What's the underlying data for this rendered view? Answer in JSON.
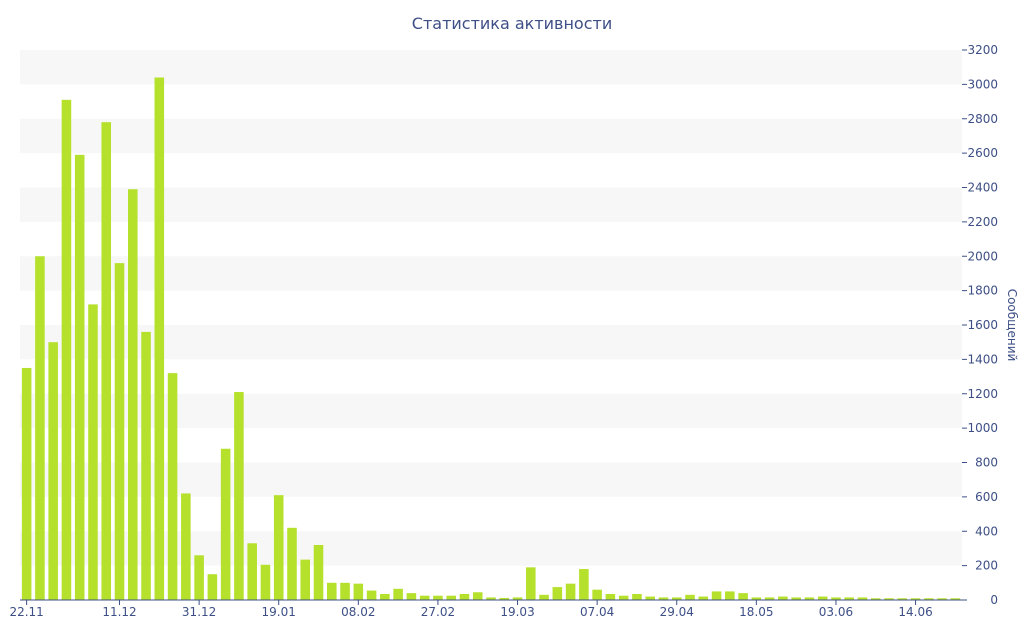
{
  "chart_data": {
    "type": "bar",
    "title": "Статистика активности",
    "ylabel": "Сообщений",
    "xlabel": "",
    "ylim": [
      0,
      3200
    ],
    "y_ticks": [
      0,
      200,
      400,
      600,
      800,
      1000,
      1200,
      1400,
      1600,
      1800,
      2000,
      2200,
      2400,
      2600,
      2800,
      3000,
      3200
    ],
    "x_tick_labels": [
      "22.11",
      "11.12",
      "31.12",
      "19.01",
      "08.02",
      "27.02",
      "19.03",
      "07.04",
      "29.04",
      "18.05",
      "03.06",
      "14.06"
    ],
    "x_tick_indices": [
      0,
      7,
      13,
      19,
      25,
      31,
      37,
      43,
      49,
      55,
      61,
      67
    ],
    "y_axis_position": "right",
    "grid": "horizontal alternating bands",
    "legend": "none",
    "colors": {
      "bar": "#b5e02b",
      "band": "#f7f7f7",
      "text": "#3d4f86"
    },
    "values": [
      1350,
      2000,
      1500,
      2910,
      2590,
      1720,
      2780,
      1960,
      2390,
      1560,
      3040,
      1320,
      620,
      260,
      150,
      880,
      1210,
      330,
      205,
      610,
      420,
      235,
      320,
      100,
      100,
      95,
      55,
      35,
      65,
      40,
      25,
      25,
      25,
      35,
      45,
      15,
      12,
      15,
      190,
      30,
      75,
      95,
      180,
      60,
      35,
      25,
      35,
      20,
      15,
      15,
      30,
      20,
      50,
      50,
      40,
      15,
      15,
      20,
      15,
      15,
      20,
      15,
      15,
      15,
      10,
      10,
      10,
      10,
      10,
      10,
      10
    ]
  }
}
